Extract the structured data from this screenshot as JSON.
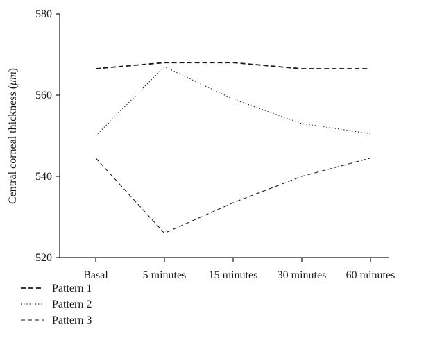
{
  "chart_data": {
    "type": "line",
    "title": "",
    "xlabel": "",
    "ylabel_prefix": "Central corneal thickness (",
    "ylabel_unit": "μm",
    "ylabel_suffix": ")",
    "categories": [
      "Basal",
      "5 minutes",
      "15 minutes",
      "30 minutes",
      "60 minutes"
    ],
    "ylim": [
      520,
      580
    ],
    "yticks": [
      520,
      540,
      560,
      580
    ],
    "grid": false,
    "legend_position": "bottom-left",
    "series": [
      {
        "name": "Pattern 1",
        "values": [
          566.5,
          568.0,
          568.0,
          566.5,
          566.5
        ],
        "style": "dashed",
        "color": "#1a1a1a"
      },
      {
        "name": "Pattern 2",
        "values": [
          550.0,
          567.0,
          559.0,
          553.0,
          550.5
        ],
        "style": "dotted",
        "color": "#1a1a1a"
      },
      {
        "name": "Pattern 3",
        "values": [
          544.5,
          526.0,
          533.5,
          540.0,
          544.5
        ],
        "style": "dashed-thin",
        "color": "#1a1a1a"
      }
    ]
  }
}
